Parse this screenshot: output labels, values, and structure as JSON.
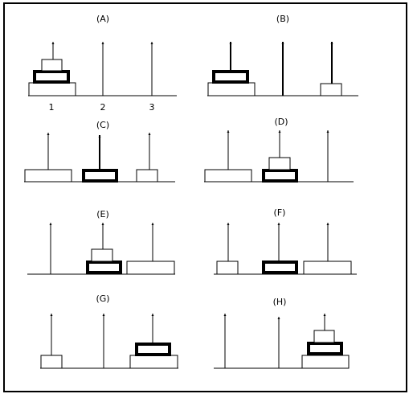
{
  "panels": [
    {
      "id": "A",
      "label": "(A)"
    },
    {
      "id": "B",
      "label": "(B)"
    },
    {
      "id": "C",
      "label": "(C)"
    },
    {
      "id": "D",
      "label": "(D)"
    },
    {
      "id": "E",
      "label": "(E)"
    },
    {
      "id": "F",
      "label": "(F)"
    },
    {
      "id": "G",
      "label": "(G)"
    },
    {
      "id": "H",
      "label": "(H)"
    }
  ],
  "peg_numbers": [
    "1",
    "2",
    "3"
  ]
}
